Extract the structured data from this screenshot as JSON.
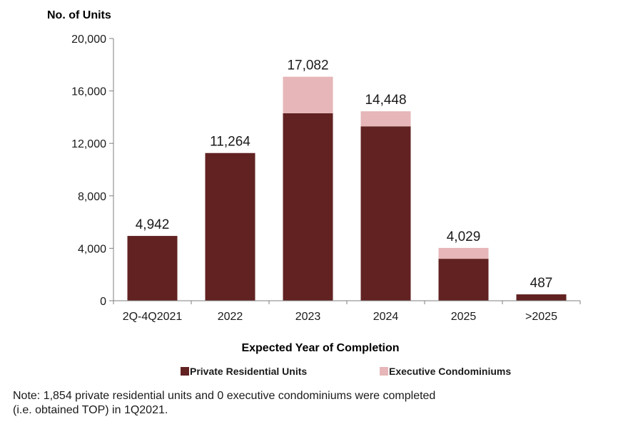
{
  "chart_data": {
    "type": "bar",
    "stacked": true,
    "ylabel": "No. of Units",
    "xlabel": "Expected Year of Completion",
    "ylim": [
      0,
      20000
    ],
    "yticks": [
      0,
      4000,
      8000,
      12000,
      16000,
      20000
    ],
    "ytick_labels": [
      "0",
      "4,000",
      "8,000",
      "12,000",
      "16,000",
      "20,000"
    ],
    "grid": false,
    "legend_position": "bottom",
    "categories": [
      "2Q-4Q2021",
      "2022",
      "2023",
      "2024",
      "2025",
      ">2025"
    ],
    "series": [
      {
        "name": "Private Residential Units",
        "color": "#622222",
        "values": [
          4942,
          11264,
          14300,
          13300,
          3200,
          487
        ]
      },
      {
        "name": "Executive Condominiums",
        "color": "#e6b6b8",
        "values": [
          0,
          0,
          2782,
          1148,
          829,
          0
        ]
      }
    ],
    "totals": [
      4942,
      11264,
      17082,
      14448,
      4029,
      487
    ],
    "total_labels": [
      "4,942",
      "11,264",
      "17,082",
      "14,448",
      "4,029",
      "487"
    ]
  },
  "note": {
    "line1": "Note: 1,854 private residential units and 0 executive condominiums were completed",
    "line2": "(i.e. obtained TOP) in 1Q2021."
  }
}
